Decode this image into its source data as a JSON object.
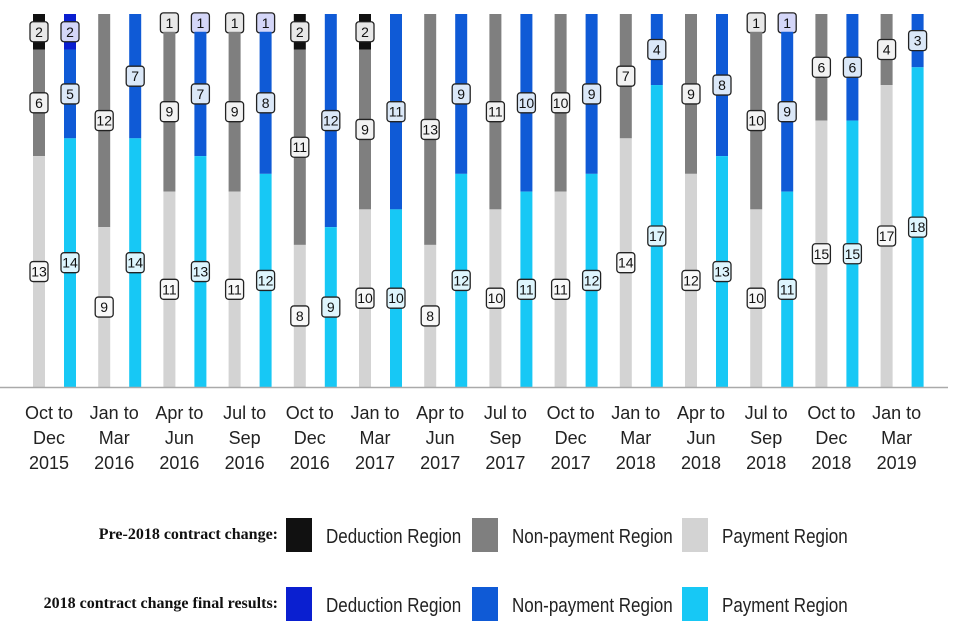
{
  "chart_data": {
    "type": "bar",
    "stacked": true,
    "categories": [
      [
        "Oct to",
        "Dec",
        "2015"
      ],
      [
        "Jan to",
        "Mar",
        "2016"
      ],
      [
        "Apr to",
        "Jun",
        "2016"
      ],
      [
        "Jul to",
        "Sep",
        "2016"
      ],
      [
        "Oct to",
        "Dec",
        "2016"
      ],
      [
        "Jan to",
        "Mar",
        "2017"
      ],
      [
        "Apr to",
        "Jun",
        "2017"
      ],
      [
        "Jul to",
        "Sep",
        "2017"
      ],
      [
        "Oct to",
        "Dec",
        "2017"
      ],
      [
        "Jan to",
        "Mar",
        "2018"
      ],
      [
        "Apr to",
        "Jun",
        "2018"
      ],
      [
        "Jul to",
        "Sep",
        "2018"
      ],
      [
        "Oct to",
        "Dec",
        "2018"
      ],
      [
        "Jan to",
        "Mar",
        "2019"
      ]
    ],
    "groups": [
      {
        "heading": "Pre-2018 contract change:",
        "series": [
          {
            "name": "Deduction Region",
            "color": "#111111",
            "label_bg": "#e8e8e8",
            "values": [
              2,
              0,
              1,
              1,
              2,
              2,
              0,
              0,
              0,
              0,
              0,
              1,
              0,
              0
            ]
          },
          {
            "name": "Non-payment Region",
            "color": "#7f7f7f",
            "label_bg": "#f2f2f2",
            "values": [
              6,
              12,
              9,
              9,
              11,
              9,
              13,
              11,
              10,
              7,
              9,
              10,
              6,
              4
            ]
          },
          {
            "name": "Payment Region",
            "color": "#d3d3d3",
            "label_bg": "#f8f8f8",
            "values": [
              13,
              9,
              11,
              11,
              8,
              10,
              8,
              10,
              11,
              14,
              12,
              10,
              15,
              17
            ]
          }
        ]
      },
      {
        "heading": "2018 contract change final results:",
        "series": [
          {
            "name": "Deduction Region",
            "color": "#0a1fd0",
            "label_bg": "#d4d6f8",
            "values": [
              2,
              0,
              1,
              1,
              0,
              0,
              0,
              0,
              0,
              0,
              0,
              1,
              0,
              0
            ]
          },
          {
            "name": "Non-payment Region",
            "color": "#0f5ad6",
            "label_bg": "#dbe8f8",
            "values": [
              5,
              7,
              7,
              8,
              12,
              11,
              9,
              10,
              9,
              4,
              8,
              9,
              6,
              3
            ]
          },
          {
            "name": "Payment Region",
            "color": "#17c8f5",
            "label_bg": "#def5fd",
            "values": [
              14,
              14,
              13,
              12,
              9,
              10,
              12,
              11,
              12,
              17,
              13,
              11,
              15,
              18
            ]
          }
        ]
      }
    ],
    "ylim": [
      0,
      21
    ],
    "grid": false,
    "legend_position": "bottom"
  }
}
